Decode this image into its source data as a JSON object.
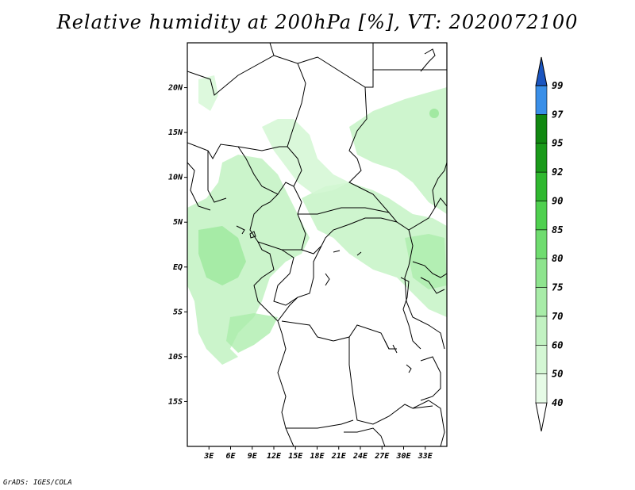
{
  "title": "Relative humidity at 200hPa [%], VT: 2020072100",
  "credit": "GrADS: IGES/COLA",
  "map": {
    "lon_range": [
      0,
      36
    ],
    "lat_range": [
      -20,
      25
    ],
    "lat_ticks": [
      {
        "value": 20,
        "label": "20N"
      },
      {
        "value": 15,
        "label": "15N"
      },
      {
        "value": 10,
        "label": "10N"
      },
      {
        "value": 5,
        "label": "5N"
      },
      {
        "value": 0,
        "label": "EQ"
      },
      {
        "value": -5,
        "label": "5S"
      },
      {
        "value": -10,
        "label": "10S"
      },
      {
        "value": -15,
        "label": "15S"
      }
    ],
    "lon_ticks": [
      {
        "value": 3,
        "label": "3E"
      },
      {
        "value": 6,
        "label": "6E"
      },
      {
        "value": 9,
        "label": "9E"
      },
      {
        "value": 12,
        "label": "12E"
      },
      {
        "value": 15,
        "label": "15E"
      },
      {
        "value": 18,
        "label": "18E"
      },
      {
        "value": 21,
        "label": "21E"
      },
      {
        "value": 24,
        "label": "24E"
      },
      {
        "value": 27,
        "label": "27E"
      },
      {
        "value": 30,
        "label": "30E"
      },
      {
        "value": 33,
        "label": "33E"
      }
    ]
  },
  "colorbar": {
    "levels": [
      {
        "label": "40",
        "color": "#e6fbe6"
      },
      {
        "label": "50",
        "color": "#d4f7d4"
      },
      {
        "label": "60",
        "color": "#c2f2c2"
      },
      {
        "label": "70",
        "color": "#a8eca8"
      },
      {
        "label": "75",
        "color": "#8ee48e"
      },
      {
        "label": "80",
        "color": "#6fdc6f"
      },
      {
        "label": "85",
        "color": "#4fd04f"
      },
      {
        "label": "90",
        "color": "#2fb82f"
      },
      {
        "label": "92",
        "color": "#1a9a1a"
      },
      {
        "label": "95",
        "color": "#118811"
      },
      {
        "label": "97",
        "color": "#3a8fe8"
      },
      {
        "label": "99",
        "color": "#1a6fd6"
      }
    ],
    "top_color": "#1a55c0",
    "bottom_color": "#ffffff"
  }
}
